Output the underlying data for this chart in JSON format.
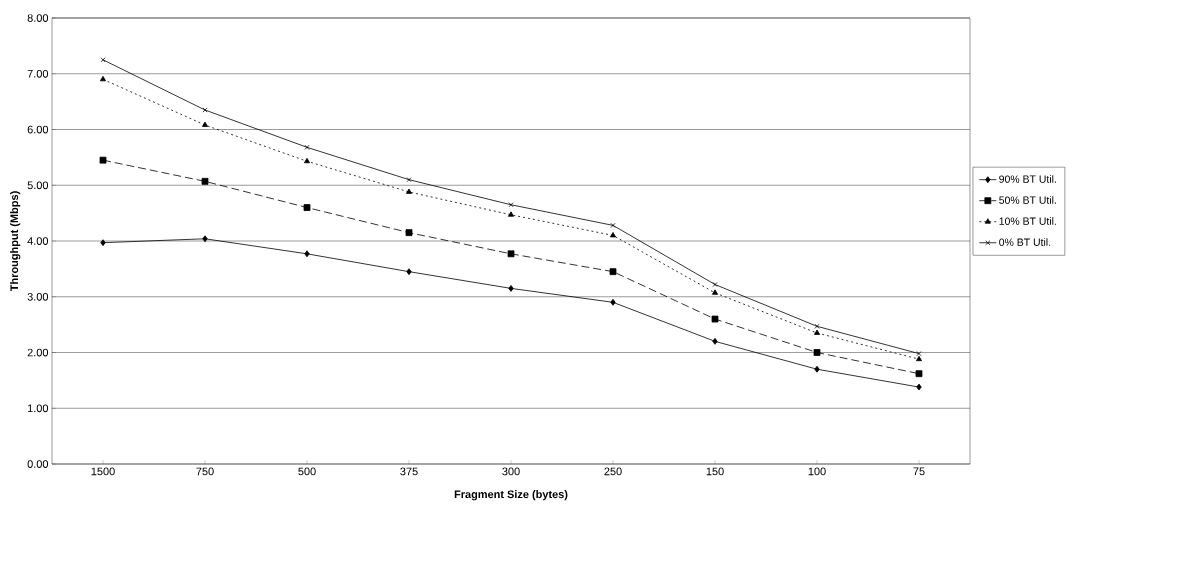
{
  "chart_data": {
    "type": "line",
    "xlabel": "Fragment Size (bytes)",
    "ylabel": "Throughput (Mbps)",
    "categories": [
      "1500",
      "750",
      "500",
      "375",
      "300",
      "250",
      "150",
      "100",
      "75"
    ],
    "ylim": [
      0,
      8
    ],
    "yticks": [
      {
        "value": 0,
        "label": "0.00"
      },
      {
        "value": 1,
        "label": "1.00"
      },
      {
        "value": 2,
        "label": "2.00"
      },
      {
        "value": 3,
        "label": "3.00"
      },
      {
        "value": 4,
        "label": "4.00"
      },
      {
        "value": 5,
        "label": "5.00"
      },
      {
        "value": 6,
        "label": "6.00"
      },
      {
        "value": 7,
        "label": "7.00"
      },
      {
        "value": 8,
        "label": "8.00"
      }
    ],
    "grid": "y",
    "legend": "right",
    "series": [
      {
        "name": "90% BT Util.",
        "color": "#000000",
        "marker": "diamond",
        "line_style": "solid",
        "values": [
          3.97,
          4.04,
          3.77,
          3.45,
          3.15,
          2.9,
          2.2,
          1.7,
          1.38
        ]
      },
      {
        "name": "50% BT Util.",
        "color": "#000000",
        "marker": "square",
        "line_style": "dashed",
        "values": [
          5.45,
          5.07,
          4.6,
          4.15,
          3.77,
          3.45,
          2.6,
          2.0,
          1.62
        ]
      },
      {
        "name": "10% BT Util.",
        "color": "#000000",
        "marker": "triangle",
        "line_style": "dotted",
        "values": [
          6.9,
          6.08,
          5.43,
          4.88,
          4.47,
          4.1,
          3.07,
          2.35,
          1.88
        ]
      },
      {
        "name": "0% BT Util.",
        "color": "#000000",
        "marker": "cross",
        "line_style": "solid",
        "values": [
          7.25,
          6.35,
          5.68,
          5.1,
          4.65,
          4.28,
          3.22,
          2.47,
          1.98
        ]
      }
    ]
  }
}
